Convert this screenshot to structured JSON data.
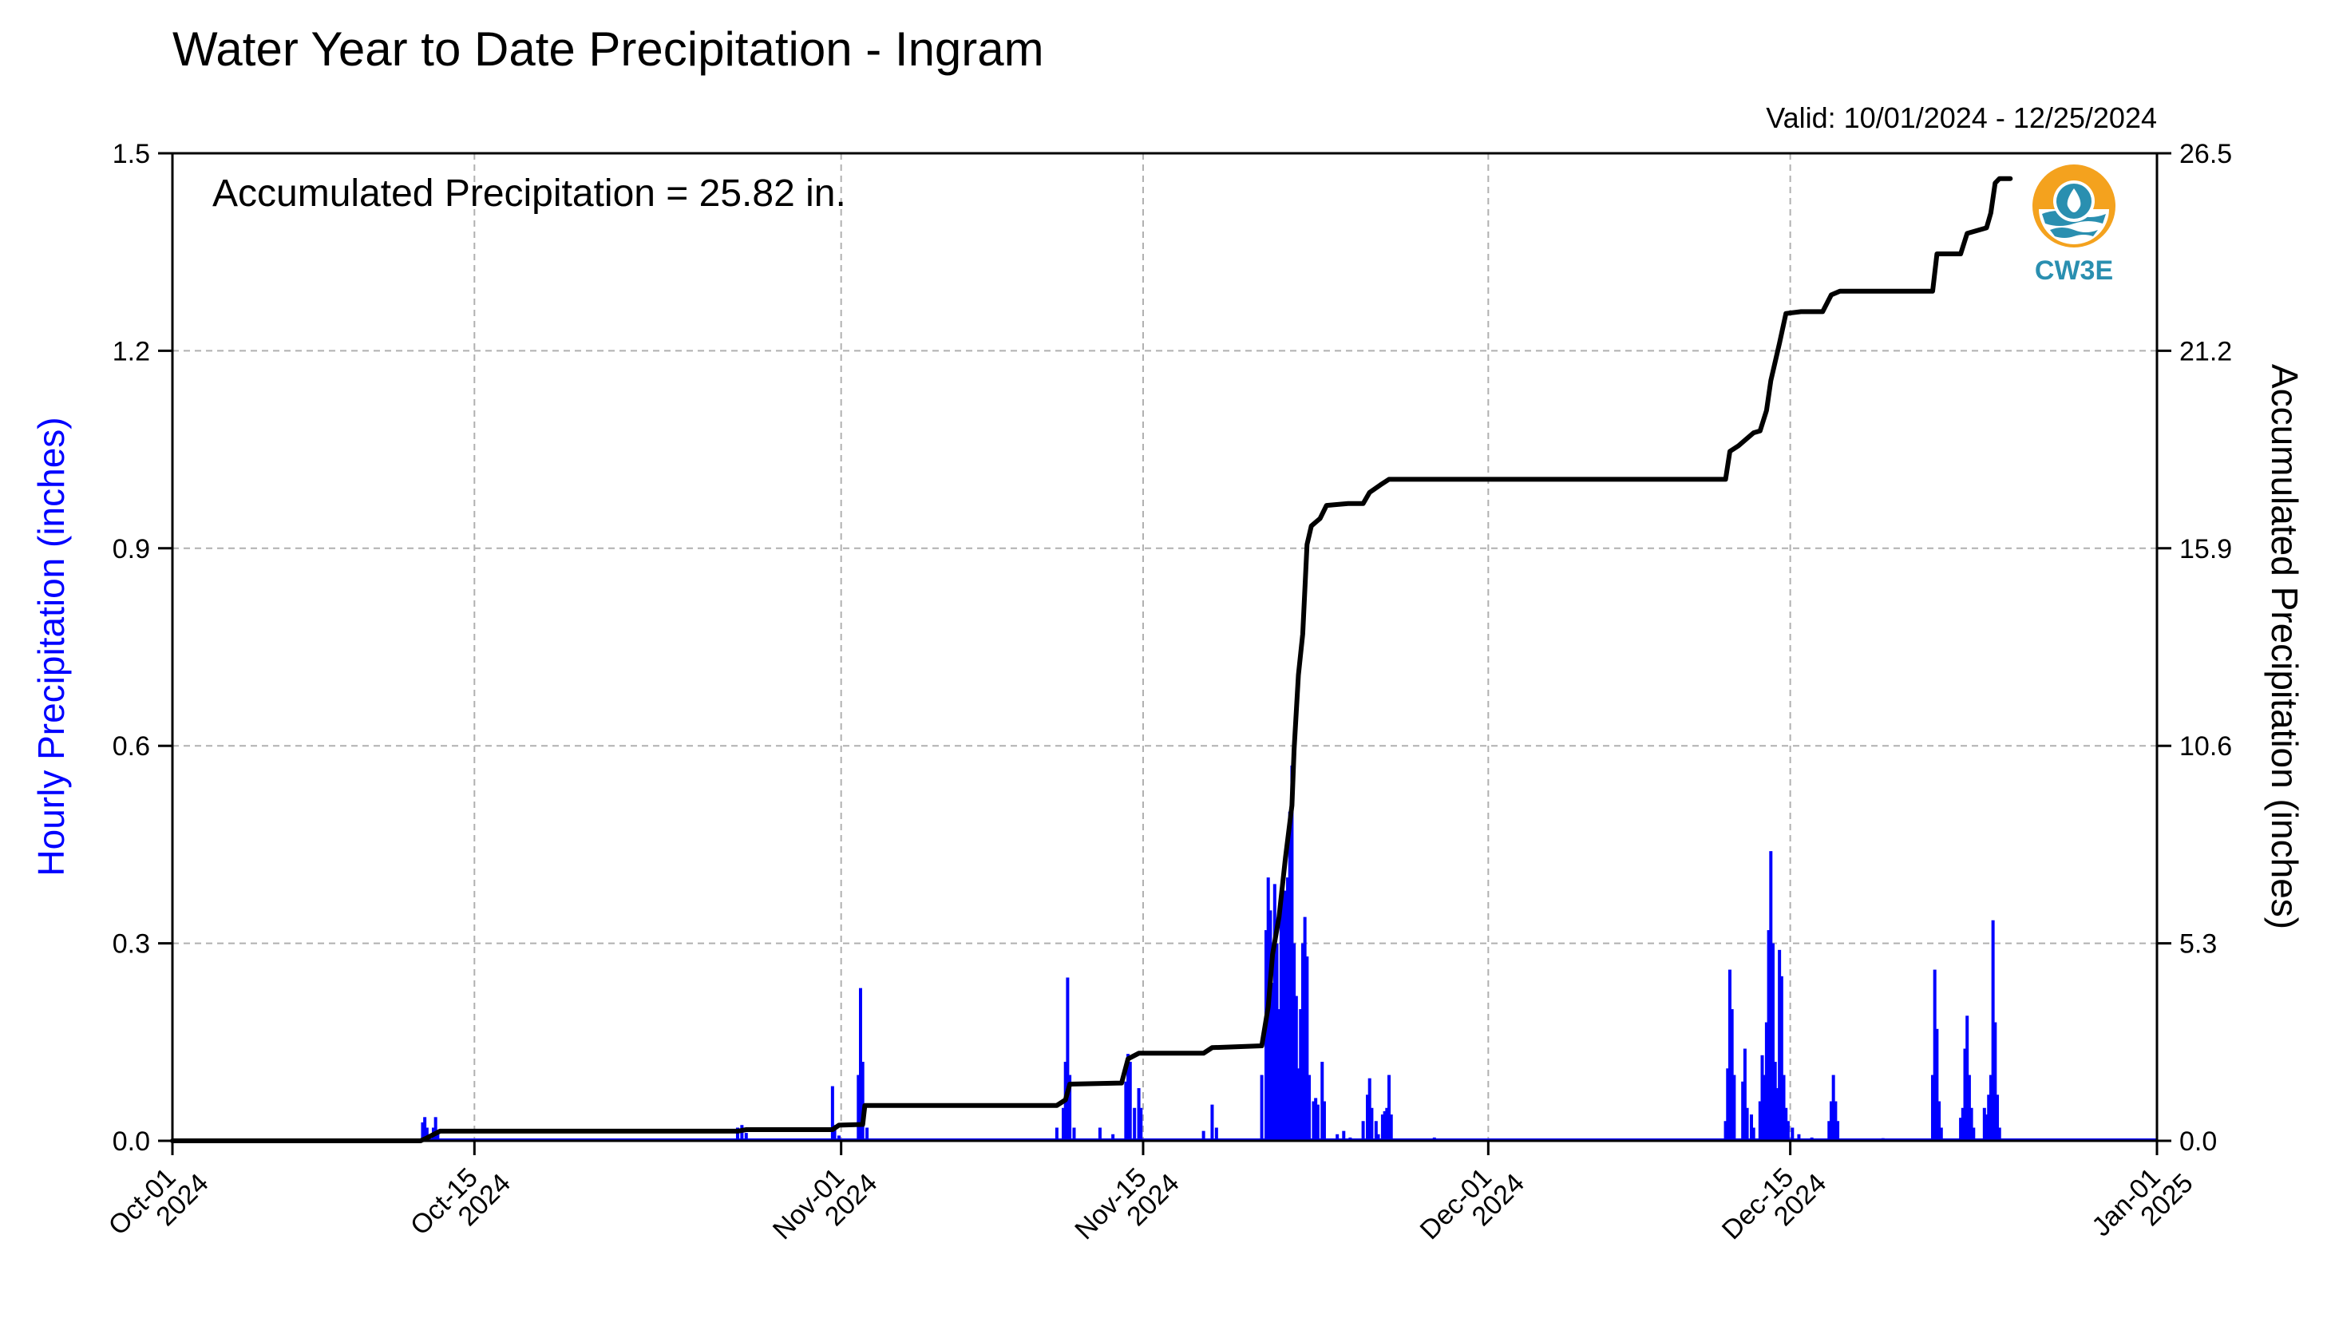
{
  "chart_data": {
    "type": "bar+line",
    "title": "Water Year to Date Precipitation - Ingram",
    "valid_text": "Valid: 10/01/2024 - 12/25/2024",
    "annotation": "Accumulated Precipitation = 25.82 in.",
    "ylabel_left": "Hourly Precipitation (inches)",
    "ylabel_right": "Accumulated Precipitation (inches)",
    "ylim_left": [
      0,
      1.5
    ],
    "ylim_right": [
      0,
      26.5
    ],
    "xlim_days": [
      0,
      92
    ],
    "x_ticks": [
      {
        "day": 0,
        "line1": "Oct-01",
        "line2": "2024"
      },
      {
        "day": 14,
        "line1": "Oct-15",
        "line2": "2024"
      },
      {
        "day": 31,
        "line1": "Nov-01",
        "line2": "2024"
      },
      {
        "day": 45,
        "line1": "Nov-15",
        "line2": "2024"
      },
      {
        "day": 61,
        "line1": "Dec-01",
        "line2": "2024"
      },
      {
        "day": 75,
        "line1": "Dec-15",
        "line2": "2024"
      },
      {
        "day": 92,
        "line1": "Jan-01",
        "line2": "2025"
      }
    ],
    "y_ticks_left": [
      "0.0",
      "0.3",
      "0.6",
      "0.9",
      "1.2",
      "1.5"
    ],
    "y_ticks_right": [
      "0.0",
      "5.3",
      "10.6",
      "15.9",
      "21.2",
      "26.5"
    ],
    "grid": true,
    "colors": {
      "bars": "#0000ff",
      "line": "#000000",
      "grid": "#b0b0b0",
      "logo_orange": "#f4a21e",
      "logo_teal": "#2a8fb0"
    },
    "logo": {
      "text": "CW3E"
    },
    "hourly_bars": [
      [
        11.6,
        0.028
      ],
      [
        11.7,
        0.036
      ],
      [
        11.8,
        0.02
      ],
      [
        12.1,
        0.02
      ],
      [
        12.2,
        0.036
      ],
      [
        12.3,
        0.012
      ],
      [
        26.2,
        0.02
      ],
      [
        26.4,
        0.024
      ],
      [
        26.6,
        0.012
      ],
      [
        30.6,
        0.083
      ],
      [
        30.7,
        0.024
      ],
      [
        30.9,
        0.008
      ],
      [
        31.8,
        0.1
      ],
      [
        31.9,
        0.232
      ],
      [
        32.0,
        0.12
      ],
      [
        32.2,
        0.02
      ],
      [
        41.0,
        0.02
      ],
      [
        41.3,
        0.05
      ],
      [
        41.4,
        0.12
      ],
      [
        41.5,
        0.248
      ],
      [
        41.6,
        0.1
      ],
      [
        41.8,
        0.02
      ],
      [
        43.0,
        0.02
      ],
      [
        43.6,
        0.01
      ],
      [
        44.2,
        0.09
      ],
      [
        44.3,
        0.132
      ],
      [
        44.4,
        0.12
      ],
      [
        44.6,
        0.05
      ],
      [
        44.8,
        0.08
      ],
      [
        44.9,
        0.05
      ],
      [
        47.8,
        0.015
      ],
      [
        48.2,
        0.055
      ],
      [
        48.4,
        0.02
      ],
      [
        50.5,
        0.1
      ],
      [
        50.7,
        0.32
      ],
      [
        50.8,
        0.4
      ],
      [
        50.9,
        0.35
      ],
      [
        51.0,
        0.24
      ],
      [
        51.1,
        0.39
      ],
      [
        51.2,
        0.3
      ],
      [
        51.3,
        0.2
      ],
      [
        51.4,
        0.37
      ],
      [
        51.5,
        0.38
      ],
      [
        51.6,
        0.38
      ],
      [
        51.7,
        0.4
      ],
      [
        51.8,
        0.5
      ],
      [
        51.9,
        0.57
      ],
      [
        52.0,
        0.3
      ],
      [
        52.1,
        0.22
      ],
      [
        52.2,
        0.11
      ],
      [
        52.3,
        0.2
      ],
      [
        52.4,
        0.3
      ],
      [
        52.5,
        0.34
      ],
      [
        52.6,
        0.28
      ],
      [
        52.7,
        0.1
      ],
      [
        52.9,
        0.06
      ],
      [
        53.0,
        0.065
      ],
      [
        53.1,
        0.055
      ],
      [
        53.3,
        0.12
      ],
      [
        53.4,
        0.06
      ],
      [
        54.0,
        0.01
      ],
      [
        54.3,
        0.015
      ],
      [
        54.6,
        0.005
      ],
      [
        55.2,
        0.03
      ],
      [
        55.4,
        0.07
      ],
      [
        55.5,
        0.095
      ],
      [
        55.6,
        0.05
      ],
      [
        55.8,
        0.03
      ],
      [
        55.9,
        0.01
      ],
      [
        56.1,
        0.04
      ],
      [
        56.2,
        0.045
      ],
      [
        56.3,
        0.05
      ],
      [
        56.4,
        0.1
      ],
      [
        56.5,
        0.04
      ],
      [
        58.5,
        0.005
      ],
      [
        61.3,
        0.003
      ],
      [
        72.0,
        0.03
      ],
      [
        72.1,
        0.11
      ],
      [
        72.2,
        0.26
      ],
      [
        72.3,
        0.2
      ],
      [
        72.4,
        0.1
      ],
      [
        72.8,
        0.09
      ],
      [
        72.9,
        0.14
      ],
      [
        73.0,
        0.05
      ],
      [
        73.2,
        0.04
      ],
      [
        73.3,
        0.02
      ],
      [
        73.6,
        0.06
      ],
      [
        73.7,
        0.13
      ],
      [
        73.8,
        0.1
      ],
      [
        73.9,
        0.18
      ],
      [
        74.0,
        0.32
      ],
      [
        74.1,
        0.44
      ],
      [
        74.2,
        0.3
      ],
      [
        74.3,
        0.12
      ],
      [
        74.4,
        0.08
      ],
      [
        74.5,
        0.29
      ],
      [
        74.6,
        0.25
      ],
      [
        74.7,
        0.1
      ],
      [
        74.8,
        0.05
      ],
      [
        74.9,
        0.03
      ],
      [
        75.1,
        0.02
      ],
      [
        75.4,
        0.01
      ],
      [
        76.0,
        0.005
      ],
      [
        76.8,
        0.03
      ],
      [
        76.9,
        0.06
      ],
      [
        77.0,
        0.1
      ],
      [
        77.1,
        0.06
      ],
      [
        77.2,
        0.03
      ],
      [
        78.5,
        0.003
      ],
      [
        79.3,
        0.004
      ],
      [
        80.3,
        0.003
      ],
      [
        81.6,
        0.1
      ],
      [
        81.7,
        0.26
      ],
      [
        81.8,
        0.17
      ],
      [
        81.9,
        0.06
      ],
      [
        82.0,
        0.02
      ],
      [
        82.9,
        0.035
      ],
      [
        83.0,
        0.05
      ],
      [
        83.1,
        0.14
      ],
      [
        83.2,
        0.19
      ],
      [
        83.3,
        0.1
      ],
      [
        83.4,
        0.05
      ],
      [
        83.5,
        0.02
      ],
      [
        84.0,
        0.05
      ],
      [
        84.1,
        0.04
      ],
      [
        84.2,
        0.07
      ],
      [
        84.3,
        0.1
      ],
      [
        84.4,
        0.335
      ],
      [
        84.5,
        0.18
      ],
      [
        84.6,
        0.07
      ],
      [
        84.7,
        0.02
      ]
    ],
    "accumulated": [
      [
        0,
        0
      ],
      [
        11.5,
        0
      ],
      [
        11.8,
        0.08
      ],
      [
        12.2,
        0.2
      ],
      [
        12.4,
        0.26
      ],
      [
        26.2,
        0.26
      ],
      [
        26.6,
        0.3
      ],
      [
        30.6,
        0.3
      ],
      [
        30.9,
        0.42
      ],
      [
        32.0,
        0.44
      ],
      [
        32.1,
        0.95
      ],
      [
        41.0,
        0.95
      ],
      [
        41.4,
        1.1
      ],
      [
        41.6,
        1.52
      ],
      [
        44.0,
        1.55
      ],
      [
        44.3,
        2.2
      ],
      [
        44.8,
        2.35
      ],
      [
        45.5,
        2.35
      ],
      [
        47.8,
        2.35
      ],
      [
        48.2,
        2.5
      ],
      [
        50.5,
        2.55
      ],
      [
        50.8,
        3.6
      ],
      [
        51.0,
        5.0
      ],
      [
        51.3,
        6.0
      ],
      [
        51.6,
        7.6
      ],
      [
        51.9,
        9.0
      ],
      [
        52.0,
        10.5
      ],
      [
        52.2,
        12.5
      ],
      [
        52.4,
        13.6
      ],
      [
        52.6,
        16.0
      ],
      [
        52.8,
        16.5
      ],
      [
        53.2,
        16.7
      ],
      [
        53.5,
        17.05
      ],
      [
        54.5,
        17.1
      ],
      [
        55.2,
        17.1
      ],
      [
        55.5,
        17.4
      ],
      [
        56.0,
        17.6
      ],
      [
        56.4,
        17.75
      ],
      [
        57.0,
        17.75
      ],
      [
        72.0,
        17.75
      ],
      [
        72.2,
        18.5
      ],
      [
        72.6,
        18.65
      ],
      [
        72.9,
        18.8
      ],
      [
        73.3,
        19.0
      ],
      [
        73.6,
        19.05
      ],
      [
        73.9,
        19.6
      ],
      [
        74.1,
        20.4
      ],
      [
        74.3,
        20.9
      ],
      [
        74.5,
        21.4
      ],
      [
        74.8,
        22.2
      ],
      [
        75.5,
        22.25
      ],
      [
        76.5,
        22.25
      ],
      [
        76.9,
        22.7
      ],
      [
        77.3,
        22.8
      ],
      [
        81.6,
        22.8
      ],
      [
        81.8,
        23.8
      ],
      [
        82.9,
        23.8
      ],
      [
        83.2,
        24.35
      ],
      [
        84.1,
        24.5
      ],
      [
        84.3,
        24.9
      ],
      [
        84.5,
        25.7
      ],
      [
        84.7,
        25.82
      ],
      [
        85.2,
        25.82
      ]
    ]
  }
}
